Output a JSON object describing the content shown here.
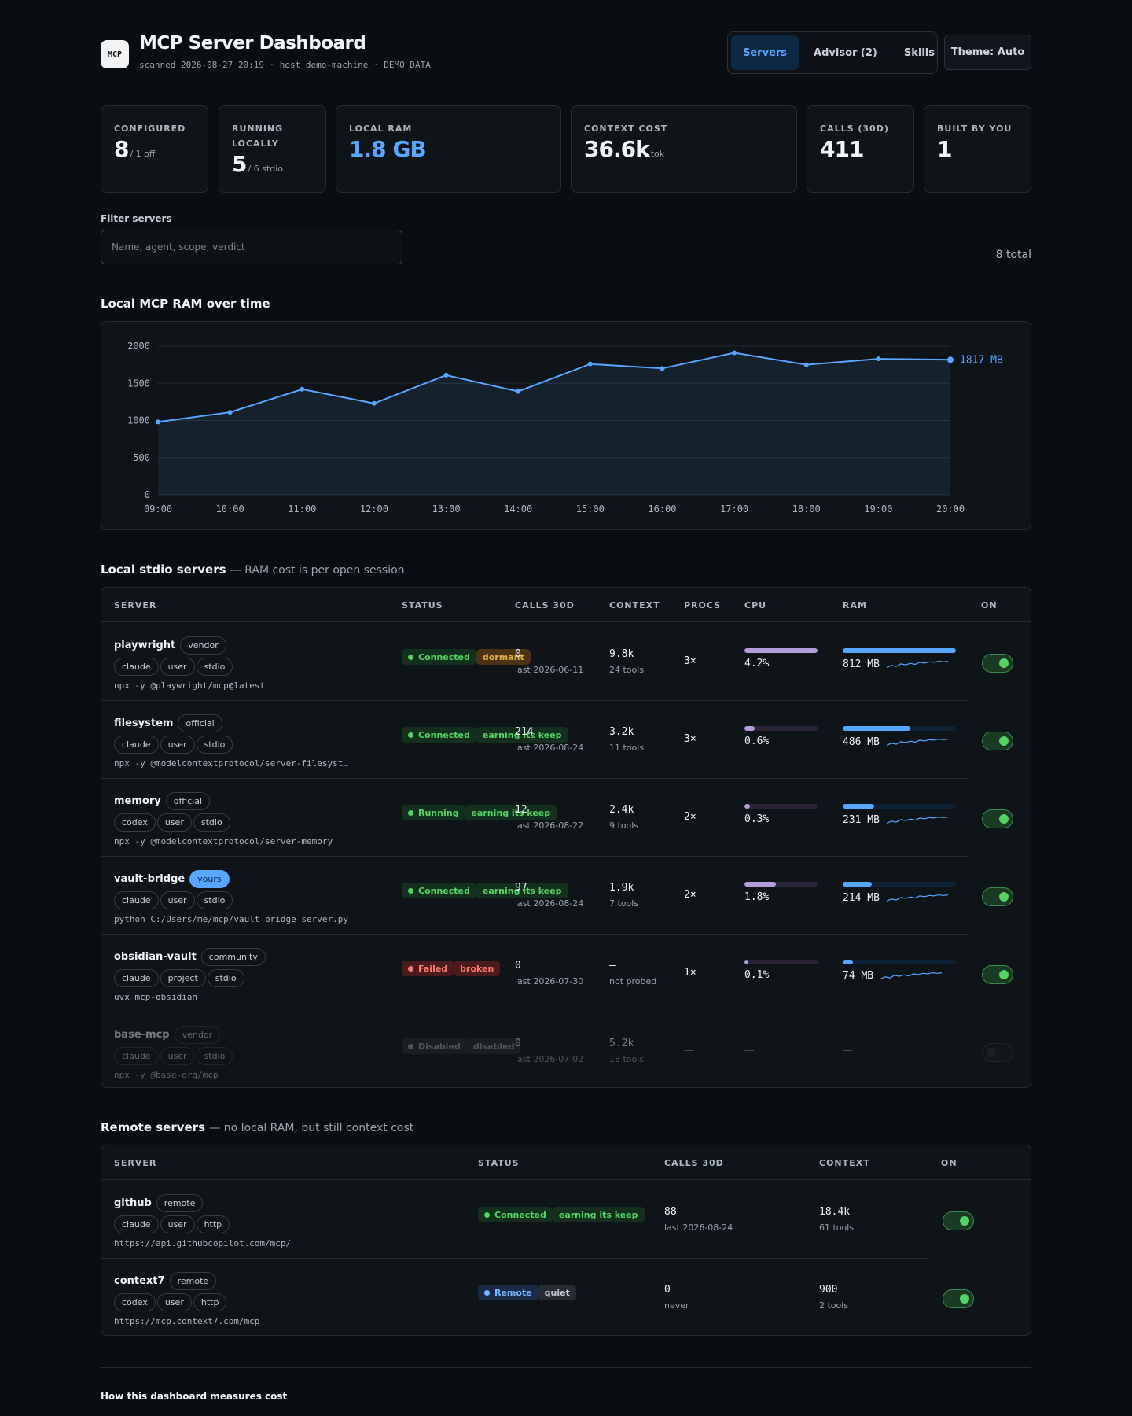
{
  "header": {
    "logo": "MCP",
    "title": "MCP Server Dashboard",
    "subtitle": "scanned 2026-08-27 20:19 · host demo-machine · DEMO DATA",
    "nav": [
      "Servers",
      "Advisor (2)",
      "Skills"
    ],
    "active_tab": "Servers",
    "theme_button": "Theme: Auto"
  },
  "stats": [
    {
      "label": "CONFIGURED",
      "value": "8",
      "sub": "/ 1 off"
    },
    {
      "label": "RUNNING LOCALLY",
      "value": "5",
      "sub": "/ 6 stdio"
    },
    {
      "label": "LOCAL RAM",
      "value": "1.8 GB",
      "sub": ""
    },
    {
      "label": "CONTEXT COST",
      "value": "36.6k",
      "sub": "tok"
    },
    {
      "label": "CALLS (30D)",
      "value": "411",
      "sub": ""
    },
    {
      "label": "BUILT BY YOU",
      "value": "1",
      "sub": ""
    }
  ],
  "filter": {
    "label": "Filter servers",
    "placeholder": "Name, agent, scope, verdict",
    "value": "",
    "total": "8 total"
  },
  "chart_section": {
    "title": "Local MCP RAM over time"
  },
  "chart_data": {
    "type": "area",
    "title": "Local MCP RAM over time",
    "x": [
      "09:00",
      "10:00",
      "11:00",
      "12:00",
      "13:00",
      "14:00",
      "15:00",
      "16:00",
      "17:00",
      "18:00",
      "19:00",
      "20:00"
    ],
    "values": [
      980,
      1110,
      1420,
      1230,
      1610,
      1390,
      1760,
      1700,
      1910,
      1750,
      1830,
      1817
    ],
    "ylim": [
      0,
      2000
    ],
    "yticks": [
      "0",
      "500",
      "1000",
      "1500",
      "2000"
    ],
    "last_label": "1817 MB",
    "grid": true,
    "colors": {
      "line": "#58a6ff"
    }
  },
  "local_section": {
    "title": "Local stdio servers",
    "note": "— RAM cost is per open session",
    "headers": [
      "SERVER",
      "STATUS",
      "CALLS 30D",
      "CONTEXT",
      "PROCS",
      "CPU",
      "RAM",
      "ON"
    ],
    "rows": [
      {
        "name": "playwright",
        "source": "vendor",
        "tags": [
          "claude",
          "user",
          "stdio"
        ],
        "cmd": "npx -y @playwright/mcp@latest",
        "status": "Connected",
        "status_kind": "green",
        "verdict": "dormant",
        "verdict_kind": "dormant",
        "calls": "0",
        "last": "last 2026-06-11",
        "context": "9.8k",
        "tools": "24 tools",
        "procs": "3×",
        "cpu": "4.2%",
        "cpu_frac": 1.0,
        "ram": "812 MB",
        "ram_frac": 1.0,
        "spark": [
          0.2,
          0.4,
          0.3,
          0.55,
          0.45,
          0.6,
          0.5,
          0.7,
          0.62,
          0.75,
          0.7,
          0.8,
          0.75,
          0.8
        ],
        "enabled": true,
        "dim": false
      },
      {
        "name": "filesystem",
        "source": "official",
        "tags": [
          "claude",
          "user",
          "stdio"
        ],
        "cmd": "npx -y @modelcontextprotocol/server-filesyst…",
        "status": "Connected",
        "status_kind": "green",
        "verdict": "earning its keep",
        "verdict_kind": "keep",
        "calls": "214",
        "last": "last 2026-08-24",
        "context": "3.2k",
        "tools": "11 tools",
        "procs": "3×",
        "cpu": "0.6%",
        "cpu_frac": 0.14,
        "ram": "486 MB",
        "ram_frac": 0.6,
        "spark": [
          0.2,
          0.4,
          0.3,
          0.55,
          0.45,
          0.6,
          0.5,
          0.7,
          0.62,
          0.75,
          0.7,
          0.8,
          0.75,
          0.8
        ],
        "enabled": true,
        "dim": false
      },
      {
        "name": "memory",
        "source": "official",
        "tags": [
          "codex",
          "user",
          "stdio"
        ],
        "cmd": "npx -y @modelcontextprotocol/server-memory",
        "status": "Running",
        "status_kind": "green",
        "verdict": "earning its keep",
        "verdict_kind": "keep",
        "calls": "12",
        "last": "last 2026-08-22",
        "context": "2.4k",
        "tools": "9 tools",
        "procs": "2×",
        "cpu": "0.3%",
        "cpu_frac": 0.07,
        "ram": "231 MB",
        "ram_frac": 0.28,
        "spark": [
          0.2,
          0.4,
          0.3,
          0.55,
          0.45,
          0.6,
          0.5,
          0.7,
          0.62,
          0.75,
          0.7,
          0.8,
          0.75,
          0.8
        ],
        "enabled": true,
        "dim": false
      },
      {
        "name": "vault-bridge",
        "source": "yours",
        "tags": [
          "claude",
          "user",
          "stdio"
        ],
        "cmd": "python C:/Users/me/mcp/vault_bridge_server.py",
        "status": "Connected",
        "status_kind": "green",
        "verdict": "earning its keep",
        "verdict_kind": "keep",
        "calls": "97",
        "last": "last 2026-08-24",
        "context": "1.9k",
        "tools": "7 tools",
        "procs": "2×",
        "cpu": "1.8%",
        "cpu_frac": 0.43,
        "ram": "214 MB",
        "ram_frac": 0.26,
        "spark": [
          0.2,
          0.4,
          0.3,
          0.55,
          0.45,
          0.6,
          0.5,
          0.7,
          0.62,
          0.75,
          0.7,
          0.8,
          0.75,
          0.8
        ],
        "enabled": true,
        "dim": false
      },
      {
        "name": "obsidian-vault",
        "source": "community",
        "tags": [
          "claude",
          "project",
          "stdio"
        ],
        "cmd": "uvx mcp-obsidian",
        "status": "Failed",
        "status_kind": "red",
        "verdict": "broken",
        "verdict_kind": "broken",
        "calls": "0",
        "last": "last 2026-07-30",
        "context": "—",
        "tools": "not probed",
        "procs": "1×",
        "cpu": "0.1%",
        "cpu_frac": 0.02,
        "ram": "74 MB",
        "ram_frac": 0.09,
        "spark": [
          0.2,
          0.4,
          0.3,
          0.55,
          0.45,
          0.6,
          0.5,
          0.7,
          0.62,
          0.75,
          0.7,
          0.8,
          0.75,
          0.8
        ],
        "enabled": true,
        "dim": false
      },
      {
        "name": "base-mcp",
        "source": "vendor",
        "tags": [
          "claude",
          "user",
          "stdio"
        ],
        "cmd": "npx -y @base-org/mcp",
        "status": "Disabled",
        "status_kind": "gray",
        "verdict": "disabled",
        "verdict_kind": "disabled",
        "calls": "0",
        "last": "last 2026-07-02",
        "context": "5.2k",
        "tools": "18 tools",
        "procs": "—",
        "cpu": "—",
        "cpu_frac": null,
        "ram": "—",
        "ram_frac": null,
        "spark": [],
        "enabled": false,
        "dim": true
      }
    ]
  },
  "remote_section": {
    "title": "Remote servers",
    "note": "— no local RAM, but still context cost",
    "headers": [
      "SERVER",
      "STATUS",
      "CALLS 30D",
      "CONTEXT",
      "ON"
    ],
    "rows": [
      {
        "name": "github",
        "source": "remote",
        "tags": [
          "claude",
          "user",
          "http"
        ],
        "cmd": "https://api.githubcopilot.com/mcp/",
        "status": "Connected",
        "status_kind": "green",
        "verdict": "earning its keep",
        "verdict_kind": "keep",
        "calls": "88",
        "last": "last 2026-08-24",
        "context": "18.4k",
        "tools": "61 tools",
        "enabled": true
      },
      {
        "name": "context7",
        "source": "remote",
        "tags": [
          "codex",
          "user",
          "http"
        ],
        "cmd": "https://mcp.context7.com/mcp",
        "status": "Remote",
        "status_kind": "blue",
        "verdict": "quiet",
        "verdict_kind": "quiet",
        "calls": "0",
        "last": "never",
        "context": "900",
        "tools": "2 tools",
        "enabled": true
      }
    ]
  },
  "footer": {
    "link": "How this dashboard measures cost"
  }
}
